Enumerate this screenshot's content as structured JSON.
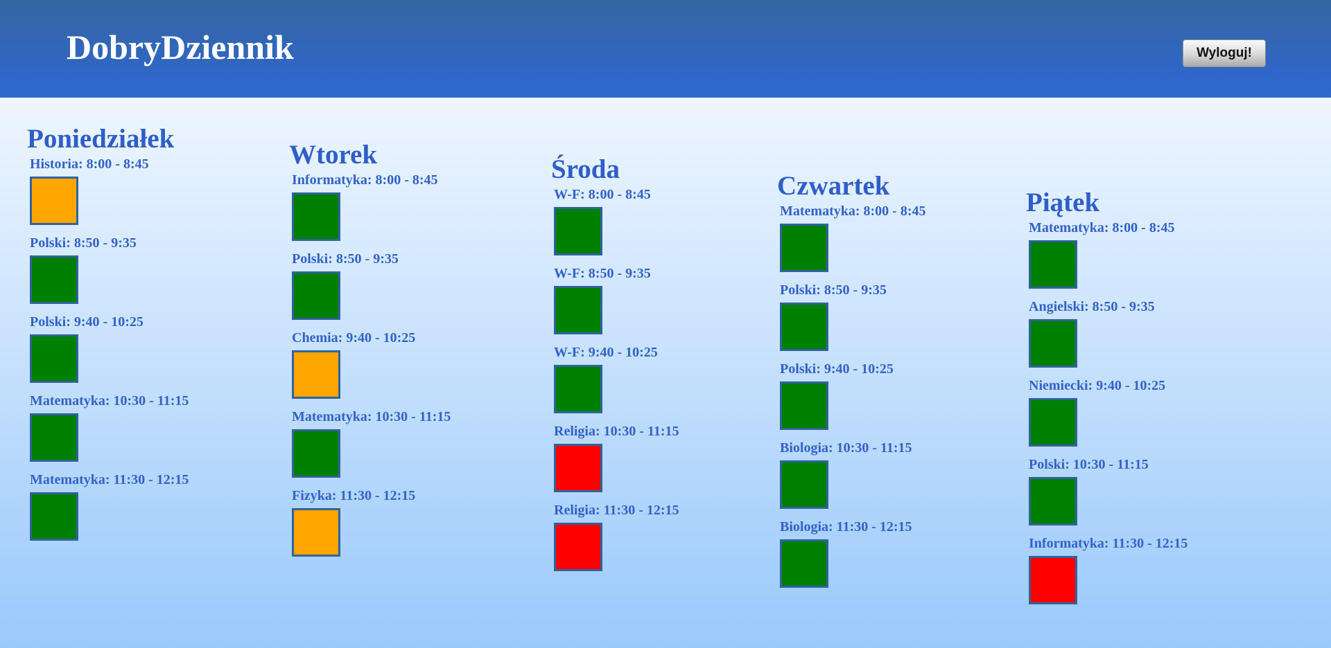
{
  "header": {
    "title": "DobryDziennik",
    "logout_label": "Wyloguj!"
  },
  "status_colors": {
    "green": "#008000",
    "orange": "#ffa500",
    "red": "#ff0000"
  },
  "days": [
    {
      "name": "Poniedziałek",
      "lessons": [
        {
          "label": "Historia: 8:00 - 8:45",
          "status": "orange"
        },
        {
          "label": "Polski: 8:50 - 9:35",
          "status": "green"
        },
        {
          "label": "Polski: 9:40 - 10:25",
          "status": "green"
        },
        {
          "label": "Matematyka: 10:30 - 11:15",
          "status": "green"
        },
        {
          "label": "Matematyka: 11:30 - 12:15",
          "status": "green"
        }
      ]
    },
    {
      "name": "Wtorek",
      "lessons": [
        {
          "label": "Informatyka: 8:00 - 8:45",
          "status": "green"
        },
        {
          "label": "Polski: 8:50 - 9:35",
          "status": "green"
        },
        {
          "label": "Chemia: 9:40 - 10:25",
          "status": "orange"
        },
        {
          "label": "Matematyka: 10:30 - 11:15",
          "status": "green"
        },
        {
          "label": "Fizyka: 11:30 - 12:15",
          "status": "orange"
        }
      ]
    },
    {
      "name": "Środa",
      "lessons": [
        {
          "label": "W-F: 8:00 - 8:45",
          "status": "green"
        },
        {
          "label": "W-F: 8:50 - 9:35",
          "status": "green"
        },
        {
          "label": "W-F: 9:40 - 10:25",
          "status": "green"
        },
        {
          "label": "Religia: 10:30 - 11:15",
          "status": "red"
        },
        {
          "label": "Religia: 11:30 - 12:15",
          "status": "red"
        }
      ]
    },
    {
      "name": "Czwartek",
      "lessons": [
        {
          "label": "Matematyka: 8:00 - 8:45",
          "status": "green"
        },
        {
          "label": "Polski: 8:50 - 9:35",
          "status": "green"
        },
        {
          "label": "Polski: 9:40 - 10:25",
          "status": "green"
        },
        {
          "label": "Biologia: 10:30 - 11:15",
          "status": "green"
        },
        {
          "label": "Biologia: 11:30 - 12:15",
          "status": "green"
        }
      ]
    },
    {
      "name": "Piątek",
      "lessons": [
        {
          "label": "Matematyka: 8:00 - 8:45",
          "status": "green"
        },
        {
          "label": "Angielski: 8:50 - 9:35",
          "status": "green"
        },
        {
          "label": "Niemiecki: 9:40 - 10:25",
          "status": "green"
        },
        {
          "label": "Polski: 10:30 - 11:15",
          "status": "green"
        },
        {
          "label": "Informatyka: 11:30 - 12:15",
          "status": "red"
        }
      ]
    }
  ]
}
